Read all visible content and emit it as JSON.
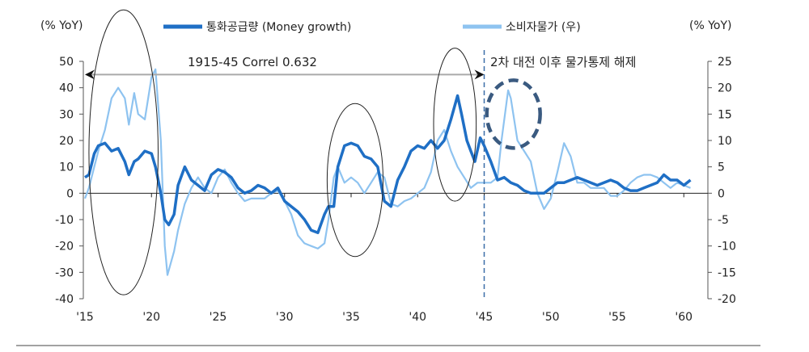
{
  "chart_data": {
    "type": "line",
    "left_axis_unit": "(% YoY)",
    "right_axis_unit": "(% YoY)",
    "left_ylim": [
      -40,
      50
    ],
    "left_ticks": [
      50,
      40,
      30,
      20,
      10,
      0,
      -10,
      -20,
      -30,
      -40
    ],
    "right_ylim": [
      -20,
      25
    ],
    "right_ticks": [
      25,
      20,
      15,
      10,
      5,
      0,
      -5,
      -10,
      -15,
      -20
    ],
    "x_ticks": [
      {
        "year": 1915,
        "label": "'15"
      },
      {
        "year": 1920,
        "label": "'20"
      },
      {
        "year": 1925,
        "label": "'25"
      },
      {
        "year": 1930,
        "label": "'30"
      },
      {
        "year": 1935,
        "label": "'35"
      },
      {
        "year": 1940,
        "label": "'40"
      },
      {
        "year": 1945,
        "label": "'45"
      },
      {
        "year": 1950,
        "label": "'50"
      },
      {
        "year": 1955,
        "label": "'55"
      },
      {
        "year": 1960,
        "label": "'60"
      }
    ],
    "grid": false,
    "legend_placement": "top",
    "annotations": {
      "correl": "1915-45 Correl 0.632",
      "post_war": "2차 대전 이후 물가통제 해제"
    },
    "series": [
      {
        "name": "통화공급량 (Money growth)",
        "axis": "left",
        "color": "#1f6fc5",
        "x": [
          1915,
          1915.3,
          1915.7,
          1916,
          1916.5,
          1917,
          1917.5,
          1918,
          1918.3,
          1918.7,
          1919,
          1919.5,
          1920,
          1920.3,
          1920.7,
          1921,
          1921.3,
          1921.7,
          1922,
          1922.5,
          1923,
          1923.5,
          1924,
          1924.5,
          1925,
          1925.5,
          1926,
          1926.5,
          1927,
          1927.5,
          1928,
          1928.5,
          1929,
          1929.5,
          1930,
          1930.5,
          1931,
          1931.5,
          1932,
          1932.5,
          1933,
          1933.3,
          1933.7,
          1934,
          1934.5,
          1935,
          1935.5,
          1936,
          1936.5,
          1937,
          1937.5,
          1938,
          1938.5,
          1939,
          1939.5,
          1940,
          1940.5,
          1941,
          1941.5,
          1942,
          1942.5,
          1943,
          1943.3,
          1943.7,
          1944,
          1944.3,
          1944.7,
          1945,
          1945.5,
          1946,
          1946.5,
          1947,
          1947.5,
          1948,
          1948.5,
          1949,
          1949.5,
          1950,
          1950.5,
          1951,
          1951.5,
          1952,
          1952.5,
          1953,
          1953.5,
          1954,
          1954.5,
          1955,
          1955.5,
          1956,
          1956.5,
          1957,
          1957.5,
          1958,
          1958.5,
          1959,
          1959.5,
          1960,
          1960.5
        ],
        "values": [
          6,
          7,
          15,
          18,
          19,
          16,
          17,
          12,
          7,
          12,
          13,
          16,
          15,
          10,
          0,
          -10,
          -12,
          -8,
          3,
          10,
          5,
          3,
          1,
          7,
          9,
          8,
          6,
          2,
          0,
          1,
          3,
          2,
          0,
          2,
          -3,
          -5,
          -7,
          -10,
          -14,
          -15,
          -8,
          -5,
          -5,
          10,
          18,
          19,
          18,
          14,
          13,
          10,
          -3,
          -5,
          5,
          10,
          16,
          18,
          17,
          20,
          17,
          20,
          28,
          37,
          30,
          20,
          16,
          12,
          21,
          18,
          12,
          5,
          6,
          4,
          3,
          1,
          0,
          0,
          0,
          2,
          4,
          4,
          5,
          6,
          5,
          4,
          3,
          4,
          5,
          4,
          2,
          1,
          1,
          2,
          3,
          4,
          7,
          5,
          5,
          3,
          5
        ]
      },
      {
        "name": "소비자물가 (우)",
        "axis": "right",
        "color": "#8ec3f0",
        "x": [
          1915,
          1915.3,
          1915.7,
          1916,
          1916.5,
          1917,
          1917.5,
          1918,
          1918.3,
          1918.7,
          1919,
          1919.5,
          1920,
          1920.3,
          1920.7,
          1921,
          1921.2,
          1921.7,
          1922,
          1922.5,
          1923,
          1923.5,
          1924,
          1924.5,
          1925,
          1925.5,
          1926,
          1926.5,
          1927,
          1927.5,
          1928,
          1928.5,
          1929,
          1929.5,
          1930,
          1930.5,
          1931,
          1931.5,
          1932,
          1932.5,
          1933,
          1933.3,
          1933.7,
          1934,
          1934.5,
          1935,
          1935.5,
          1936,
          1936.5,
          1937,
          1937.5,
          1938,
          1938.5,
          1939,
          1939.5,
          1940,
          1940.5,
          1941,
          1941.5,
          1942,
          1942.5,
          1943,
          1943.5,
          1944,
          1944.5,
          1945,
          1945.5,
          1946,
          1946.3,
          1946.8,
          1947,
          1947.5,
          1948,
          1948.5,
          1949,
          1949.5,
          1950,
          1950.5,
          1951,
          1951.5,
          1952,
          1952.5,
          1953,
          1953.5,
          1954,
          1954.5,
          1955,
          1955.5,
          1956,
          1956.5,
          1957,
          1957.5,
          1958,
          1958.5,
          1959,
          1959.5,
          1960,
          1960.5
        ],
        "values": [
          -1,
          1,
          5,
          8,
          12,
          18,
          20,
          18,
          13,
          19,
          15,
          14,
          22,
          23.5,
          10,
          -10,
          -15.5,
          -11,
          -7,
          -2,
          1,
          3,
          1,
          0,
          3,
          4.5,
          2,
          0,
          -1.5,
          -1,
          -1,
          -1,
          0,
          0.5,
          -1.5,
          -4,
          -8,
          -9.5,
          -10,
          -10.5,
          -9.5,
          -5,
          3,
          5,
          2,
          3,
          2,
          0,
          2,
          4,
          3,
          -2,
          -2.5,
          -1.5,
          -1,
          0,
          1,
          4,
          10,
          12,
          8,
          5,
          3,
          1,
          2,
          2,
          2,
          3,
          10,
          19.5,
          18,
          10,
          8,
          6,
          0,
          -3,
          -1,
          4,
          9.5,
          7,
          2,
          2,
          1,
          1,
          1,
          -0.5,
          -0.5,
          0.5,
          2,
          3,
          3.5,
          3.5,
          3,
          2,
          1,
          2,
          1.5,
          1
        ]
      }
    ]
  }
}
